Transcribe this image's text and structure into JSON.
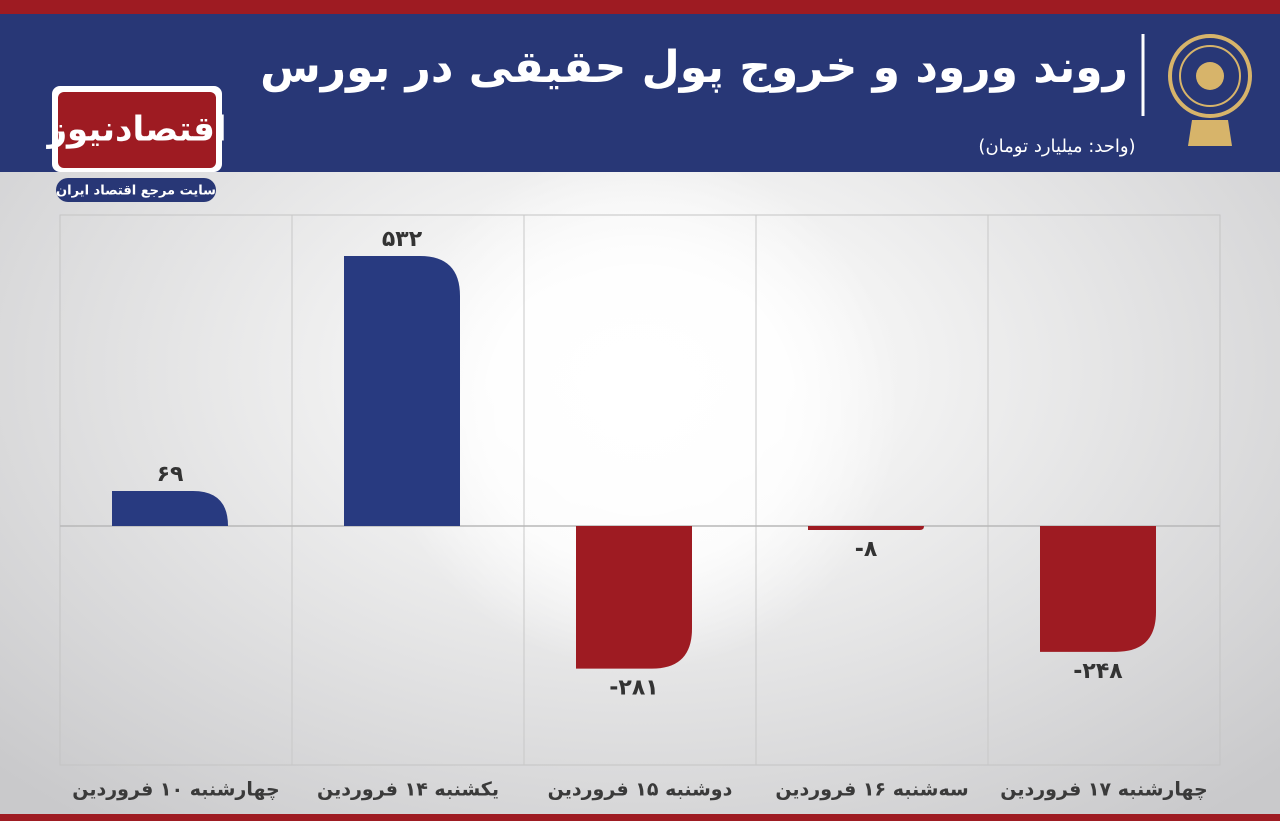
{
  "chart_data": {
    "type": "bar",
    "title": "روند ورود و خروج پول حقیقی در بورس",
    "subtitle": "(واحد: میلیارد تومان)",
    "brand": "اقتصادنیوز",
    "brand_tagline": "سایت مرجع اقتصاد ایران",
    "categories": [
      "چهارشنبه ۱۰ فروردین",
      "یکشنبه ۱۴ فروردین",
      "دوشنبه ۱۵ فروردین",
      "سه‌شنبه ۱۶ فروردین",
      "چهارشنبه ۱۷ فروردین"
    ],
    "values": [
      69,
      532,
      -281,
      -8,
      -248
    ],
    "value_labels": [
      "۶۹",
      "۵۳۲",
      "-۲۸۱",
      "-۸",
      "-۲۴۸"
    ],
    "colors": [
      "#283a80",
      "#283a80",
      "#9e1b22",
      "#9e1b22",
      "#9e1b22"
    ]
  }
}
